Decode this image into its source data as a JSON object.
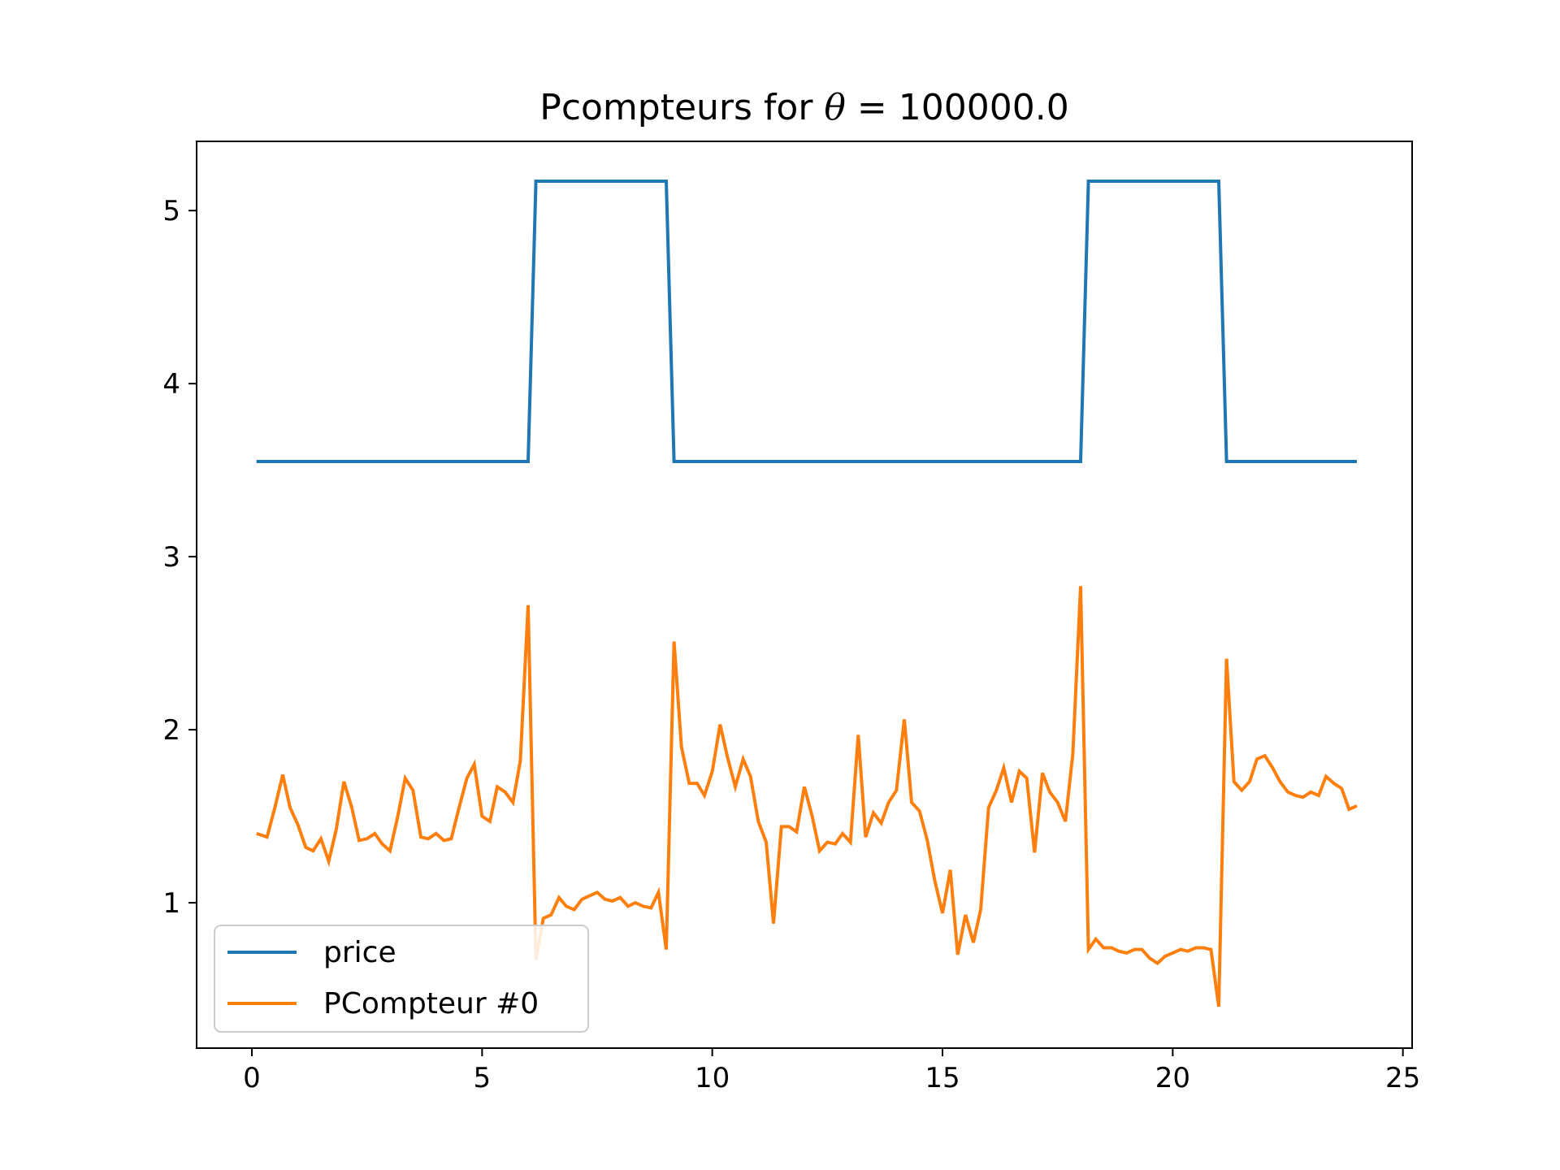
{
  "chart_data": {
    "type": "line",
    "title": {
      "prefix": "Pcompteurs for ",
      "symbol": "θ",
      "equals": " = ",
      "value": "100000.0"
    },
    "xlabel": "",
    "ylabel": "",
    "xlim": [
      -1.2,
      25.2
    ],
    "ylim": [
      0.16,
      5.4
    ],
    "xticks": [
      0,
      5,
      10,
      15,
      20,
      25
    ],
    "yticks": [
      1,
      2,
      3,
      4,
      5
    ],
    "grid": false,
    "legend_position": "lower-left",
    "series": [
      {
        "name": "price",
        "color": "#1f77b4",
        "points": [
          [
            0.1,
            3.55
          ],
          [
            6.0,
            3.55
          ],
          [
            6.17,
            5.17
          ],
          [
            9.0,
            5.17
          ],
          [
            9.17,
            3.55
          ],
          [
            18.0,
            3.55
          ],
          [
            18.17,
            5.17
          ],
          [
            21.0,
            5.17
          ],
          [
            21.17,
            3.55
          ],
          [
            24.0,
            3.55
          ]
        ]
      },
      {
        "name": "PCompteur #0",
        "color": "#ff7f0e",
        "points": [
          [
            0.1,
            1.4
          ],
          [
            0.33,
            1.38
          ],
          [
            0.5,
            1.55
          ],
          [
            0.67,
            1.74
          ],
          [
            0.83,
            1.55
          ],
          [
            1.0,
            1.45
          ],
          [
            1.17,
            1.32
          ],
          [
            1.33,
            1.3
          ],
          [
            1.5,
            1.37
          ],
          [
            1.67,
            1.24
          ],
          [
            1.83,
            1.42
          ],
          [
            2.0,
            1.7
          ],
          [
            2.17,
            1.55
          ],
          [
            2.33,
            1.36
          ],
          [
            2.5,
            1.37
          ],
          [
            2.67,
            1.4
          ],
          [
            2.83,
            1.34
          ],
          [
            3.0,
            1.3
          ],
          [
            3.17,
            1.5
          ],
          [
            3.33,
            1.72
          ],
          [
            3.5,
            1.65
          ],
          [
            3.67,
            1.38
          ],
          [
            3.83,
            1.37
          ],
          [
            4.0,
            1.4
          ],
          [
            4.17,
            1.36
          ],
          [
            4.33,
            1.37
          ],
          [
            4.5,
            1.55
          ],
          [
            4.67,
            1.72
          ],
          [
            4.83,
            1.8
          ],
          [
            5.0,
            1.5
          ],
          [
            5.17,
            1.47
          ],
          [
            5.33,
            1.67
          ],
          [
            5.5,
            1.64
          ],
          [
            5.67,
            1.58
          ],
          [
            5.83,
            1.82
          ],
          [
            6.0,
            2.72
          ],
          [
            6.17,
            0.67
          ],
          [
            6.33,
            0.91
          ],
          [
            6.5,
            0.93
          ],
          [
            6.67,
            1.03
          ],
          [
            6.83,
            0.98
          ],
          [
            7.0,
            0.96
          ],
          [
            7.17,
            1.02
          ],
          [
            7.33,
            1.04
          ],
          [
            7.5,
            1.06
          ],
          [
            7.67,
            1.02
          ],
          [
            7.83,
            1.01
          ],
          [
            8.0,
            1.03
          ],
          [
            8.17,
            0.98
          ],
          [
            8.33,
            1.0
          ],
          [
            8.5,
            0.98
          ],
          [
            8.67,
            0.97
          ],
          [
            8.83,
            1.06
          ],
          [
            9.0,
            0.73
          ],
          [
            9.17,
            2.51
          ],
          [
            9.33,
            1.9
          ],
          [
            9.5,
            1.69
          ],
          [
            9.67,
            1.69
          ],
          [
            9.83,
            1.62
          ],
          [
            10.0,
            1.76
          ],
          [
            10.17,
            2.03
          ],
          [
            10.33,
            1.84
          ],
          [
            10.5,
            1.67
          ],
          [
            10.67,
            1.83
          ],
          [
            10.83,
            1.73
          ],
          [
            11.0,
            1.47
          ],
          [
            11.17,
            1.35
          ],
          [
            11.33,
            0.88
          ],
          [
            11.5,
            1.44
          ],
          [
            11.67,
            1.44
          ],
          [
            11.83,
            1.41
          ],
          [
            12.0,
            1.67
          ],
          [
            12.17,
            1.5
          ],
          [
            12.33,
            1.3
          ],
          [
            12.5,
            1.35
          ],
          [
            12.67,
            1.34
          ],
          [
            12.83,
            1.4
          ],
          [
            13.0,
            1.35
          ],
          [
            13.17,
            1.97
          ],
          [
            13.33,
            1.38
          ],
          [
            13.5,
            1.52
          ],
          [
            13.67,
            1.46
          ],
          [
            13.83,
            1.58
          ],
          [
            14.0,
            1.65
          ],
          [
            14.17,
            2.06
          ],
          [
            14.33,
            1.58
          ],
          [
            14.5,
            1.53
          ],
          [
            14.67,
            1.36
          ],
          [
            14.83,
            1.13
          ],
          [
            15.0,
            0.94
          ],
          [
            15.17,
            1.19
          ],
          [
            15.33,
            0.7
          ],
          [
            15.5,
            0.93
          ],
          [
            15.67,
            0.77
          ],
          [
            15.83,
            0.96
          ],
          [
            16.0,
            1.55
          ],
          [
            16.17,
            1.65
          ],
          [
            16.33,
            1.78
          ],
          [
            16.5,
            1.58
          ],
          [
            16.67,
            1.76
          ],
          [
            16.83,
            1.72
          ],
          [
            17.0,
            1.29
          ],
          [
            17.17,
            1.75
          ],
          [
            17.33,
            1.64
          ],
          [
            17.5,
            1.58
          ],
          [
            17.67,
            1.47
          ],
          [
            17.83,
            1.86
          ],
          [
            18.0,
            2.83
          ],
          [
            18.17,
            0.73
          ],
          [
            18.33,
            0.79
          ],
          [
            18.5,
            0.74
          ],
          [
            18.67,
            0.74
          ],
          [
            18.83,
            0.72
          ],
          [
            19.0,
            0.71
          ],
          [
            19.17,
            0.73
          ],
          [
            19.33,
            0.73
          ],
          [
            19.5,
            0.68
          ],
          [
            19.67,
            0.65
          ],
          [
            19.83,
            0.69
          ],
          [
            20.0,
            0.71
          ],
          [
            20.17,
            0.73
          ],
          [
            20.33,
            0.72
          ],
          [
            20.5,
            0.74
          ],
          [
            20.67,
            0.74
          ],
          [
            20.83,
            0.73
          ],
          [
            21.0,
            0.4
          ],
          [
            21.17,
            2.41
          ],
          [
            21.33,
            1.7
          ],
          [
            21.5,
            1.65
          ],
          [
            21.67,
            1.7
          ],
          [
            21.83,
            1.83
          ],
          [
            22.0,
            1.85
          ],
          [
            22.17,
            1.78
          ],
          [
            22.33,
            1.7
          ],
          [
            22.5,
            1.64
          ],
          [
            22.67,
            1.62
          ],
          [
            22.83,
            1.61
          ],
          [
            23.0,
            1.64
          ],
          [
            23.17,
            1.62
          ],
          [
            23.33,
            1.73
          ],
          [
            23.5,
            1.69
          ],
          [
            23.67,
            1.66
          ],
          [
            23.83,
            1.54
          ],
          [
            24.0,
            1.56
          ]
        ]
      }
    ]
  }
}
